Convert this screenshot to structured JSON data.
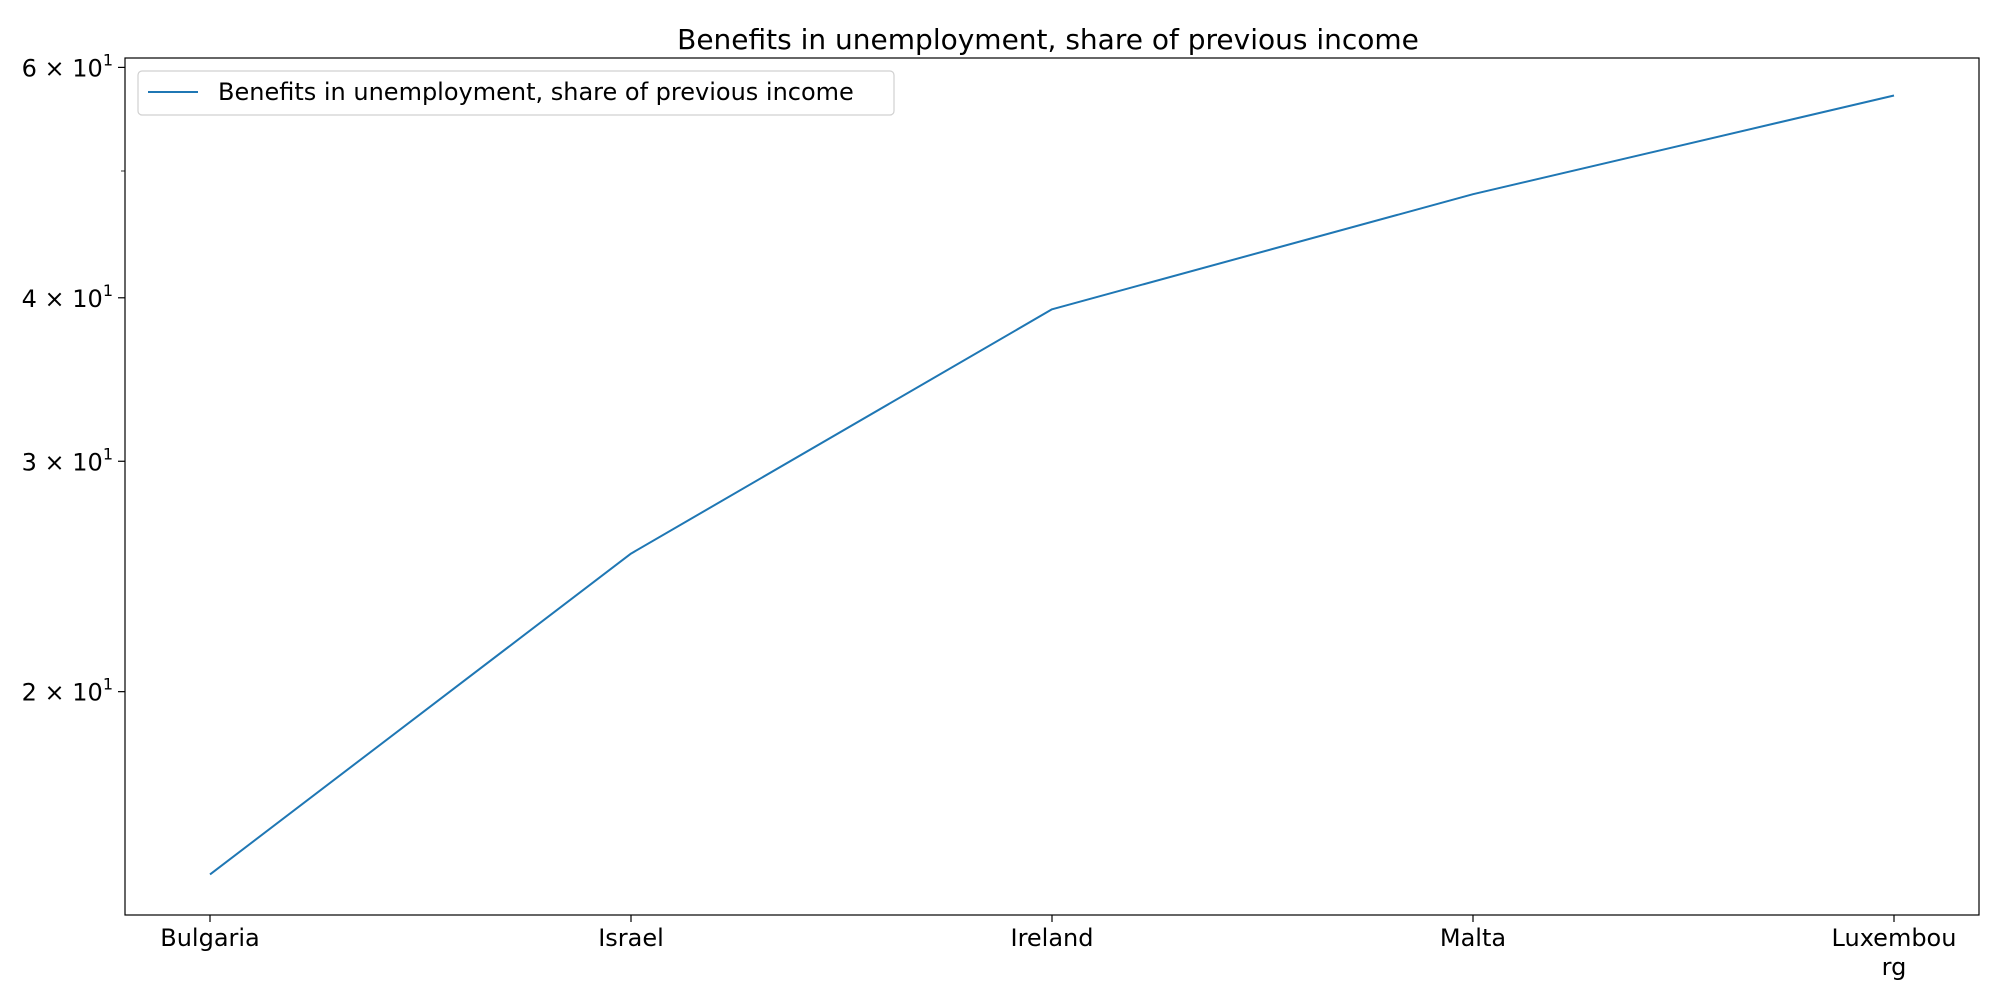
{
  "chart_data": {
    "type": "line",
    "title": "Benefits in unemployment, share of previous income",
    "xlabel": "",
    "ylabel": "",
    "categories": [
      "Bulgaria",
      "Israel",
      "Ireland",
      "Malta",
      "Luxembourg"
    ],
    "category_labels": [
      [
        "Bulgaria"
      ],
      [
        "Israel"
      ],
      [
        "Ireland"
      ],
      [
        "Malta"
      ],
      [
        "Luxembou",
        "rg"
      ]
    ],
    "series": [
      {
        "name": "Benefits in unemployment, share of previous income",
        "values": [
          14.5,
          25.5,
          39.2,
          48.0,
          57.1
        ],
        "color": "#1f77b4"
      }
    ],
    "y_scale": "log",
    "ylim": [
      13.5,
      61
    ],
    "y_ticks": [
      {
        "value": 20,
        "mantissa": "2",
        "base": "10",
        "exponent": "1"
      },
      {
        "value": 30,
        "mantissa": "3",
        "base": "10",
        "exponent": "1"
      },
      {
        "value": 40,
        "mantissa": "4",
        "base": "10",
        "exponent": "1"
      },
      {
        "value": 60,
        "mantissa": "6",
        "base": "10",
        "exponent": "1"
      }
    ],
    "y_minor_ticks": [
      50
    ],
    "grid": false,
    "legend_position": "top-left"
  }
}
